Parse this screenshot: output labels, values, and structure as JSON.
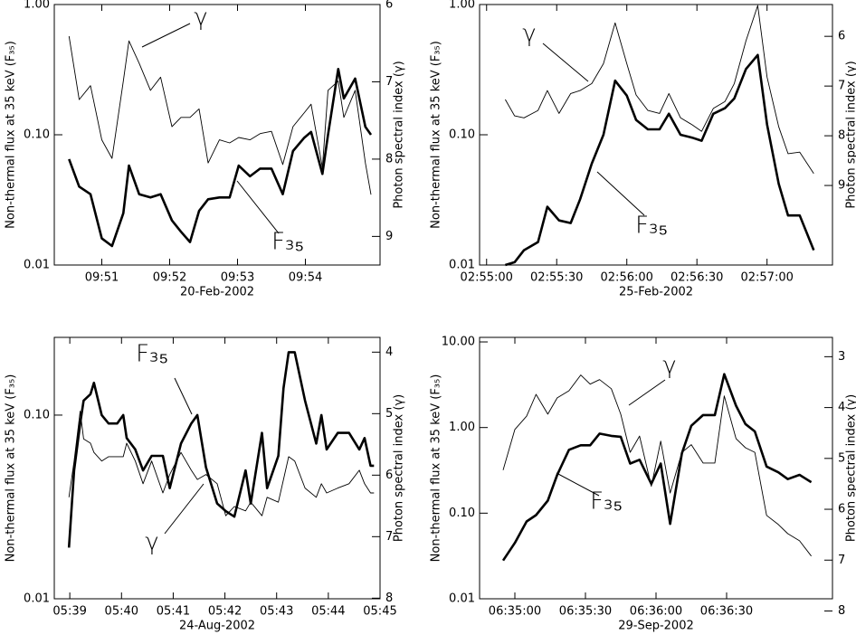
{
  "chart_data": [
    {
      "type": "line",
      "xlabel": "20-Feb-2002",
      "ylabel": "Non-thermal flux at 35 keV (F₃₅)",
      "y2label": "Photon spectral index (γ)",
      "yscale": "log",
      "x": [
        35431,
        35440,
        35450,
        35460,
        35469,
        35479,
        35484,
        35493,
        35503,
        35512,
        35522,
        35530,
        35538,
        35546,
        35554,
        35564,
        35573,
        35581,
        35591,
        35600,
        35610,
        35620,
        35629,
        35639,
        35645,
        35655,
        35660,
        35669,
        35674,
        35684,
        35693,
        35698
      ],
      "xlim": [
        35418,
        35706
      ],
      "xticks": [
        {
          "value": 35460,
          "label": "09:51"
        },
        {
          "value": 35520,
          "label": "09:52"
        },
        {
          "value": 35580,
          "label": "09:53"
        },
        {
          "value": 35640,
          "label": "09:54"
        }
      ],
      "ylim": [
        0.01,
        1
      ],
      "yticks": [
        {
          "value": 0.01,
          "label": "0.01"
        },
        {
          "value": 0.1,
          "label": "0.10"
        },
        {
          "value": 1,
          "label": "1.00"
        }
      ],
      "y2lim": [
        9.37,
        6
      ],
      "y2ticks": [
        6,
        7,
        8,
        9
      ],
      "series": [
        {
          "name": "F₃₅",
          "color": "#000000",
          "width": 2.6,
          "values": [
            0.065,
            0.04,
            0.035,
            0.016,
            0.014,
            0.025,
            0.058,
            0.035,
            0.033,
            0.035,
            0.022,
            0.018,
            0.015,
            0.026,
            0.032,
            0.033,
            0.033,
            0.058,
            0.048,
            0.055,
            0.055,
            0.035,
            0.075,
            0.095,
            0.105,
            0.05,
            0.1,
            0.32,
            0.19,
            0.27,
            0.115,
            0.1
          ]
        },
        {
          "name": "γ",
          "color": "#000000",
          "width": 0.9,
          "axis": "y2",
          "values": [
            6.41,
            7.23,
            7.05,
            7.75,
            7.99,
            6.99,
            6.47,
            6.76,
            7.11,
            6.94,
            7.58,
            7.46,
            7.46,
            7.35,
            8.05,
            7.75,
            7.79,
            7.72,
            7.75,
            7.67,
            7.64,
            8.07,
            7.58,
            7.4,
            7.29,
            8.11,
            7.11,
            6.99,
            7.46,
            7.11,
            8.05,
            8.46
          ]
        }
      ]
    },
    {
      "type": "line",
      "xlabel": "25-Feb-2002",
      "ylabel": "Non-thermal flux at 35 keV (F₃₅)",
      "y2label": "Photon spectral index (γ)",
      "yscale": "log",
      "x": [
        10508,
        10512,
        10516,
        10522,
        10526,
        10531,
        10536,
        10540,
        10545,
        10550,
        10555,
        10560,
        10564,
        10569,
        10574,
        10578,
        10583,
        10588,
        10592,
        10597,
        10602,
        10606,
        10611,
        10616,
        10620,
        10625,
        10629,
        10634,
        10640
      ],
      "xlim": [
        10497,
        10648
      ],
      "xticks": [
        {
          "value": 10500,
          "label": "02:55:00"
        },
        {
          "value": 10530,
          "label": "02:55:30"
        },
        {
          "value": 10560,
          "label": "02:56:00"
        },
        {
          "value": 10590,
          "label": "02:56:30"
        },
        {
          "value": 10620,
          "label": "02:57:00"
        }
      ],
      "ylim": [
        0.01,
        1
      ],
      "yticks": [
        {
          "value": 0.01,
          "label": "0.01"
        },
        {
          "value": 0.1,
          "label": "0.10"
        },
        {
          "value": 1,
          "label": "1.00"
        }
      ],
      "y2lim": [
        10.6,
        5.36
      ],
      "y2ticks": [
        6,
        7,
        8,
        9
      ],
      "series": [
        {
          "name": "F₃₅",
          "color": "#000000",
          "width": 2.6,
          "values": [
            0.01,
            0.0105,
            0.013,
            0.015,
            0.028,
            0.022,
            0.021,
            0.032,
            0.06,
            0.1,
            0.26,
            0.2,
            0.13,
            0.11,
            0.11,
            0.145,
            0.1,
            0.095,
            0.09,
            0.145,
            0.16,
            0.19,
            0.32,
            0.41,
            0.12,
            0.042,
            0.024,
            0.024,
            0.013
          ]
        },
        {
          "name": "γ",
          "color": "#000000",
          "width": 0.9,
          "axis": "y2",
          "values": [
            7.27,
            7.6,
            7.64,
            7.49,
            7.09,
            7.55,
            7.15,
            7.09,
            6.95,
            6.55,
            5.73,
            6.55,
            7.18,
            7.49,
            7.55,
            7.15,
            7.64,
            7.78,
            7.91,
            7.45,
            7.31,
            6.95,
            6.09,
            5.38,
            6.82,
            7.82,
            8.36,
            8.33,
            8.76
          ]
        }
      ]
    },
    {
      "type": "line",
      "xlabel": "24-Aug-2002",
      "ylabel": "Non-thermal flux at 35 keV (F₃₅)",
      "y2label": "Photon spectral index (γ)",
      "yscale": "log",
      "x": [
        20339,
        20345,
        20352,
        20356,
        20364,
        20368,
        20377,
        20385,
        20395,
        20402,
        20406,
        20416,
        20425,
        20435,
        20448,
        20456,
        20469,
        20481,
        20488,
        20498,
        20511,
        20521,
        20531,
        20544,
        20550,
        20563,
        20569,
        20582,
        20588,
        20594,
        20601,
        20613,
        20626,
        20632,
        20638,
        20651,
        20664,
        20676,
        20682,
        20689,
        20693
      ],
      "xlim": [
        20322,
        20700
      ],
      "xticks": [
        {
          "value": 20340,
          "label": "05:39"
        },
        {
          "value": 20400,
          "label": "05:40"
        },
        {
          "value": 20460,
          "label": "05:41"
        },
        {
          "value": 20520,
          "label": "05:42"
        },
        {
          "value": 20580,
          "label": "05:43"
        },
        {
          "value": 20640,
          "label": "05:44"
        },
        {
          "value": 20700,
          "label": "05:45"
        }
      ],
      "ylim": [
        0.01,
        0.265
      ],
      "yticks": [
        {
          "value": 0.01,
          "label": "0.01"
        },
        {
          "value": 0.1,
          "label": "0.10"
        }
      ],
      "y2lim": [
        8.01,
        3.76
      ],
      "y2ticks": [
        4,
        5,
        6,
        7,
        8
      ],
      "series": [
        {
          "name": "F₃₅",
          "color": "#000000",
          "width": 2.6,
          "values": [
            0.019,
            0.05,
            0.09,
            0.12,
            0.13,
            0.15,
            0.1,
            0.09,
            0.09,
            0.1,
            0.075,
            0.065,
            0.05,
            0.06,
            0.06,
            0.04,
            0.07,
            0.09,
            0.1,
            0.052,
            0.033,
            0.03,
            0.028,
            0.05,
            0.033,
            0.08,
            0.04,
            0.06,
            0.14,
            0.22,
            0.22,
            0.12,
            0.07,
            0.1,
            0.065,
            0.08,
            0.08,
            0.065,
            0.075,
            0.053,
            0.053
          ]
        },
        {
          "name": "γ",
          "color": "#000000",
          "width": 0.9,
          "axis": "y2",
          "values": [
            6.36,
            5.77,
            4.96,
            5.41,
            5.48,
            5.63,
            5.77,
            5.7,
            5.7,
            5.7,
            5.48,
            5.77,
            6.14,
            5.77,
            6.29,
            5.99,
            5.63,
            5.92,
            6.07,
            5.99,
            6.14,
            6.66,
            6.51,
            6.58,
            6.44,
            6.66,
            6.36,
            6.44,
            6.07,
            5.7,
            5.77,
            6.21,
            6.36,
            6.14,
            6.29,
            6.21,
            6.14,
            5.92,
            6.14,
            6.29,
            6.29
          ]
        }
      ]
    },
    {
      "type": "line",
      "xlabel": "29-Sep-2002",
      "ylabel": "Non-thermal flux at 35 keV (F₃₅)",
      "y2label": "Photon spectral index (γ)",
      "yscale": "log",
      "x": [
        23695,
        23700,
        23705,
        23709,
        23714,
        23718,
        23723,
        23728,
        23732,
        23736,
        23741,
        23745,
        23749,
        23753,
        23758,
        23762,
        23766,
        23771,
        23775,
        23780,
        23785,
        23789,
        23794,
        23798,
        23802,
        23807,
        23812,
        23816,
        23821,
        23826
      ],
      "xlim": [
        23685,
        23835
      ],
      "xticks": [
        {
          "value": 23700,
          "label": "06:35:00"
        },
        {
          "value": 23730,
          "label": "06:35:30"
        },
        {
          "value": 23760,
          "label": "06:36:00"
        },
        {
          "value": 23790,
          "label": "06:36:30"
        }
      ],
      "ylim": [
        0.01,
        11.3
      ],
      "yticks": [
        {
          "value": 0.01,
          "label": "0.01"
        },
        {
          "value": 0.1,
          "label": "0.10"
        },
        {
          "value": 1,
          "label": "1.00"
        },
        {
          "value": 10,
          "label": "10.00"
        }
      ],
      "y2lim": [
        7.76,
        2.62
      ],
      "y2ticks": [
        3,
        4,
        5,
        6,
        7,
        8
      ],
      "series": [
        {
          "name": "F₃₅",
          "color": "#000000",
          "width": 2.6,
          "values": [
            0.028,
            0.045,
            0.08,
            0.095,
            0.14,
            0.28,
            0.55,
            0.62,
            0.62,
            0.85,
            0.8,
            0.78,
            0.38,
            0.42,
            0.22,
            0.38,
            0.075,
            0.5,
            1.05,
            1.4,
            1.4,
            4.2,
            1.8,
            1.1,
            0.9,
            0.35,
            0.3,
            0.25,
            0.28,
            0.23
          ]
        },
        {
          "name": "γ",
          "color": "#000000",
          "width": 0.9,
          "axis": "y2",
          "values": [
            5.23,
            4.43,
            4.17,
            3.74,
            4.13,
            3.81,
            3.67,
            3.36,
            3.54,
            3.45,
            3.63,
            4.13,
            4.88,
            4.56,
            5.55,
            4.66,
            5.68,
            4.88,
            4.73,
            5.09,
            5.09,
            3.77,
            4.61,
            4.79,
            4.88,
            6.12,
            6.3,
            6.48,
            6.62,
            6.92
          ]
        }
      ]
    }
  ]
}
